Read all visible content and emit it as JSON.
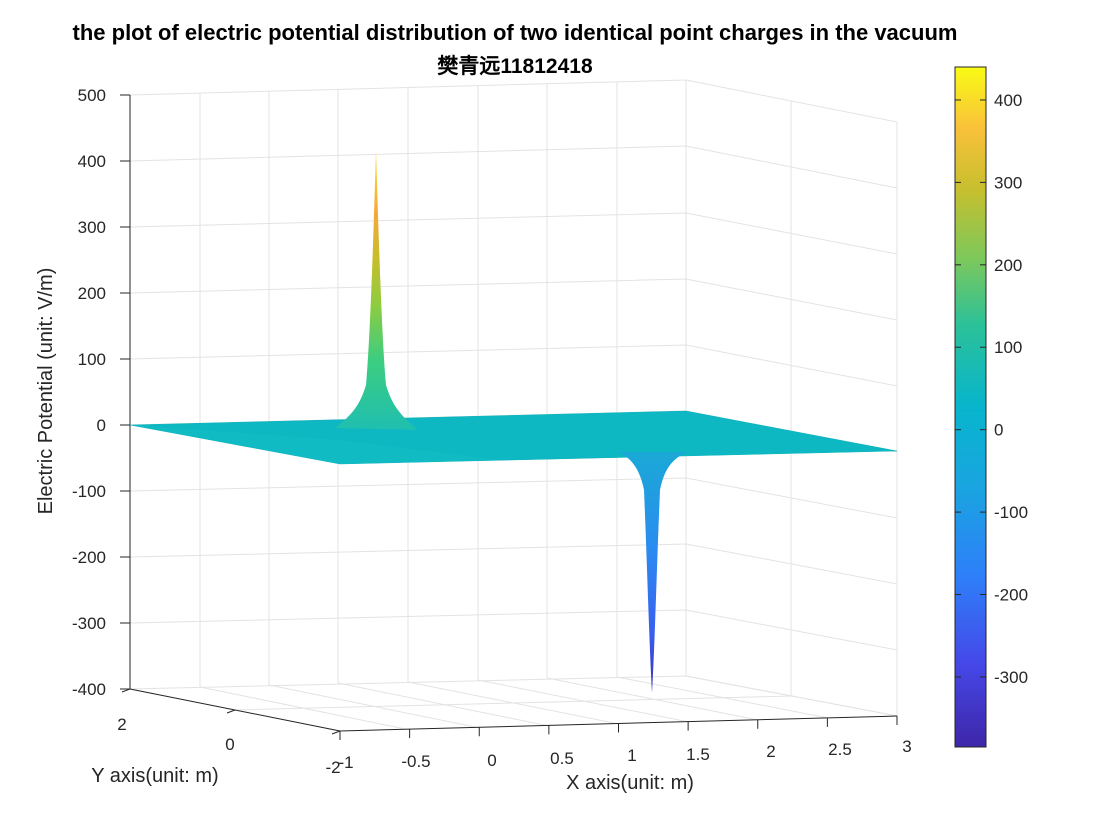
{
  "chart_data": {
    "type": "surface",
    "title": "the plot of electric potential distribution of two identical point charges in the vacuum",
    "subtitle": "樊青远11812418",
    "xlabel": "X axis(unit: m)",
    "ylabel": "Y axis(unit: m)",
    "zlabel": "Electric Potential (unit: V/m)",
    "xlim": [
      -1,
      3
    ],
    "ylim": [
      -2,
      2
    ],
    "zlim": [
      -400,
      500
    ],
    "x_ticks": [
      "-1",
      "-0.5",
      "0",
      "0.5",
      "1",
      "1.5",
      "2",
      "2.5",
      "3"
    ],
    "y_ticks": [
      "-2",
      "0",
      "2"
    ],
    "z_ticks": [
      "500",
      "400",
      "300",
      "200",
      "100",
      "0",
      "-100",
      "-200",
      "-300",
      "-400"
    ],
    "grid": true,
    "colormap": "parula",
    "colorbar": {
      "range": [
        -385,
        440
      ],
      "ticks": [
        "400",
        "300",
        "200",
        "100",
        "0",
        "-100",
        "-200",
        "-300"
      ]
    },
    "peaks": [
      {
        "x": 0,
        "y": 0,
        "value": 415
      },
      {
        "x": 2,
        "y": 0,
        "value": -410
      }
    ],
    "colors": {
      "surface_flat": "#0db8c2",
      "peak_top": "#f5e42a",
      "trough_bottom": "#3a2fb5",
      "grid": "#e3e3e3",
      "axis": "#262626"
    }
  }
}
